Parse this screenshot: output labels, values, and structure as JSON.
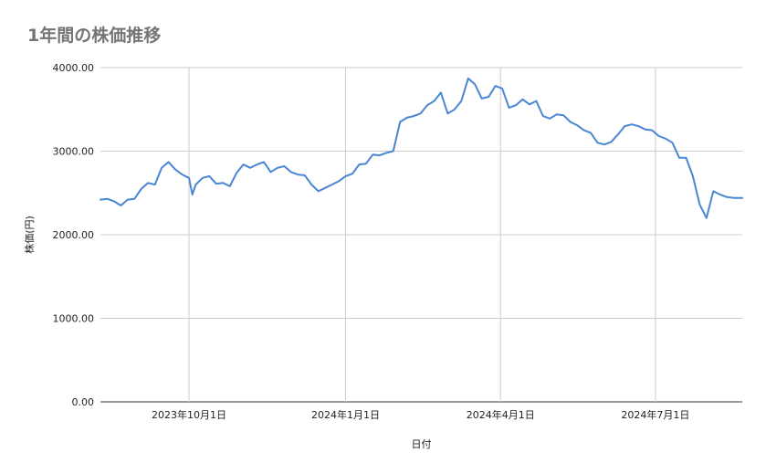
{
  "chart_data": {
    "type": "line",
    "title": "1年間の株価推移",
    "xlabel": "日付",
    "ylabel": "株価(円)",
    "ylim": [
      0,
      4000
    ],
    "y_ticks": [
      "0.00",
      "1000.00",
      "2000.00",
      "3000.00",
      "4000.00"
    ],
    "x_ticks": [
      {
        "date": "2023-10-01",
        "label": "2023年10月1日"
      },
      {
        "date": "2024-01-01",
        "label": "2024年1月1日"
      },
      {
        "date": "2024-04-01",
        "label": "2024年4月1日"
      },
      {
        "date": "2024-07-01",
        "label": "2024年7月1日"
      }
    ],
    "x_range": [
      "2023-08-10",
      "2024-08-21"
    ],
    "grid": true,
    "line_color": "#4a86d4",
    "series": [
      {
        "x": [
          "2023-08-10",
          "2023-08-14",
          "2023-08-18",
          "2023-08-22",
          "2023-08-26",
          "2023-08-30",
          "2023-09-03",
          "2023-09-07",
          "2023-09-11",
          "2023-09-15",
          "2023-09-19",
          "2023-09-23",
          "2023-09-27",
          "2023-10-01",
          "2023-10-03",
          "2023-10-05",
          "2023-10-09",
          "2023-10-13",
          "2023-10-17",
          "2023-10-21",
          "2023-10-25",
          "2023-10-29",
          "2023-11-02",
          "2023-11-06",
          "2023-11-10",
          "2023-11-14",
          "2023-11-18",
          "2023-11-22",
          "2023-11-26",
          "2023-11-30",
          "2023-12-04",
          "2023-12-08",
          "2023-12-12",
          "2023-12-16",
          "2023-12-20",
          "2023-12-24",
          "2023-12-28",
          "2024-01-01",
          "2024-01-05",
          "2024-01-09",
          "2024-01-13",
          "2024-01-17",
          "2024-01-21",
          "2024-01-25",
          "2024-01-29",
          "2024-02-02",
          "2024-02-06",
          "2024-02-10",
          "2024-02-14",
          "2024-02-18",
          "2024-02-22",
          "2024-02-26",
          "2024-03-01",
          "2024-03-05",
          "2024-03-09",
          "2024-03-13",
          "2024-03-17",
          "2024-03-21",
          "2024-03-25",
          "2024-03-29",
          "2024-04-02",
          "2024-04-06",
          "2024-04-10",
          "2024-04-14",
          "2024-04-18",
          "2024-04-22",
          "2024-04-26",
          "2024-04-30",
          "2024-05-04",
          "2024-05-08",
          "2024-05-12",
          "2024-05-16",
          "2024-05-20",
          "2024-05-24",
          "2024-05-28",
          "2024-06-01",
          "2024-06-05",
          "2024-06-09",
          "2024-06-13",
          "2024-06-17",
          "2024-06-21",
          "2024-06-25",
          "2024-06-29",
          "2024-07-03",
          "2024-07-07",
          "2024-07-11",
          "2024-07-15",
          "2024-07-19",
          "2024-07-23",
          "2024-07-27",
          "2024-07-31",
          "2024-08-04",
          "2024-08-08",
          "2024-08-12",
          "2024-08-16",
          "2024-08-18",
          "2024-08-21"
        ],
        "values": [
          2420,
          2430,
          2400,
          2350,
          2420,
          2430,
          2550,
          2620,
          2600,
          2800,
          2870,
          2780,
          2720,
          2680,
          2480,
          2600,
          2680,
          2700,
          2610,
          2620,
          2580,
          2740,
          2840,
          2800,
          2840,
          2870,
          2750,
          2800,
          2820,
          2750,
          2720,
          2710,
          2600,
          2520,
          2560,
          2600,
          2640,
          2700,
          2730,
          2840,
          2850,
          2960,
          2950,
          2980,
          3000,
          3350,
          3400,
          3420,
          3450,
          3550,
          3600,
          3700,
          3450,
          3500,
          3600,
          3870,
          3800,
          3630,
          3650,
          3780,
          3750,
          3520,
          3550,
          3620,
          3560,
          3600,
          3420,
          3390,
          3440,
          3430,
          3350,
          3310,
          3250,
          3220,
          3100,
          3080,
          3110,
          3200,
          3300,
          3320,
          3300,
          3260,
          3250,
          3180,
          3150,
          3100,
          2920,
          2920,
          2700,
          2360,
          2200,
          2520,
          2480,
          2450,
          2440,
          2440,
          2440
        ]
      }
    ]
  }
}
